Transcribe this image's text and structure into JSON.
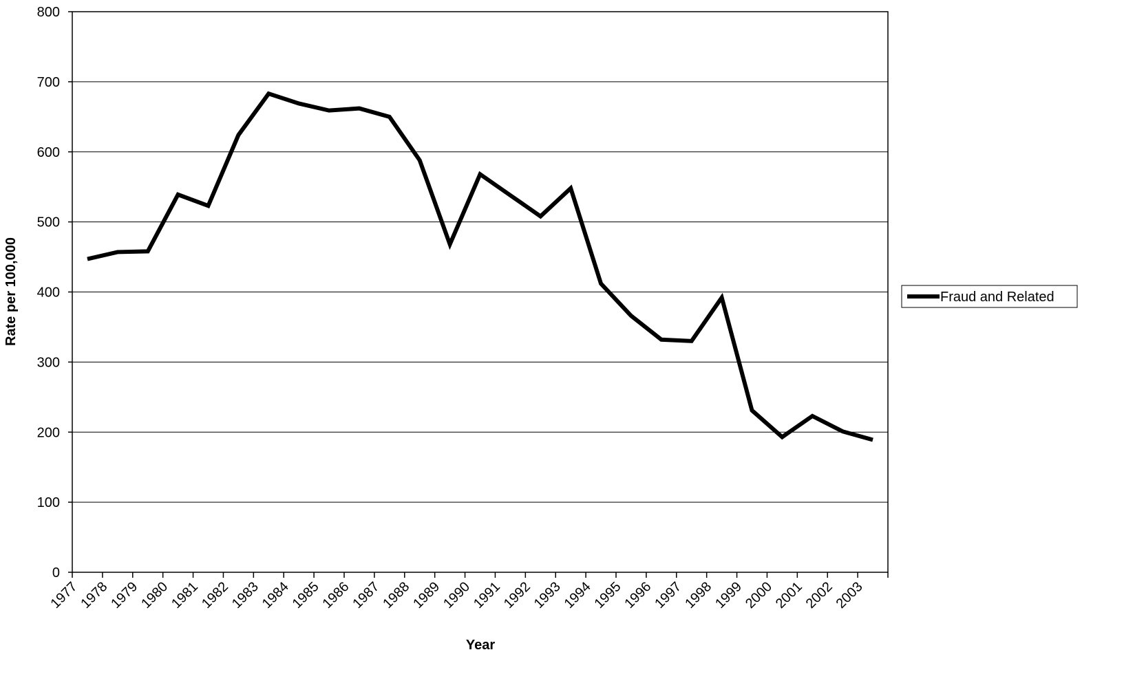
{
  "chart_data": {
    "type": "line",
    "x_label": "Year",
    "y_label": "Rate per 100,000",
    "categories": [
      "1977",
      "1978",
      "1979",
      "1980",
      "1981",
      "1982",
      "1983",
      "1984",
      "1985",
      "1986",
      "1987",
      "1988",
      "1989",
      "1990",
      "1991",
      "1992",
      "1993",
      "1994",
      "1995",
      "1996",
      "1997",
      "1998",
      "1999",
      "2000",
      "2001",
      "2002",
      "2003"
    ],
    "series": [
      {
        "name": "Fraud and Related",
        "color": "#000000",
        "values": [
          447,
          457,
          458,
          539,
          523,
          624,
          683,
          669,
          659,
          662,
          650,
          588,
          468,
          568,
          538,
          508,
          548,
          412,
          366,
          332,
          330,
          392,
          231,
          193,
          223,
          201,
          189
        ]
      }
    ],
    "ylim": [
      0,
      800
    ],
    "yticks": [
      0,
      100,
      200,
      300,
      400,
      500,
      600,
      700,
      800
    ],
    "grid": true,
    "legend": "right"
  }
}
